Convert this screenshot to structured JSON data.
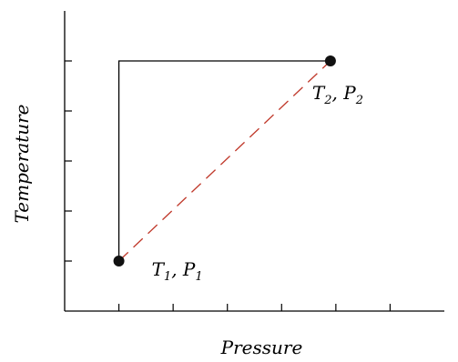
{
  "chart_data": {
    "type": "line",
    "xlabel": "Pressure",
    "ylabel": "Temperature",
    "xlim": [
      0,
      7
    ],
    "ylim": [
      0,
      6
    ],
    "x_ticks": [
      1,
      2,
      3,
      4,
      5,
      6
    ],
    "y_ticks": [
      1,
      2,
      3,
      4,
      5
    ],
    "tick_labels_shown": false,
    "grid": false,
    "points": [
      {
        "name": "point-1",
        "label_main": "T",
        "label_sub": "1",
        "label_main2": "P",
        "label_sub2": "1",
        "x": 1,
        "y": 1
      },
      {
        "name": "point-2",
        "label_main": "T",
        "label_sub": "2",
        "label_main2": "P",
        "label_sub2": "2",
        "x": 4.9,
        "y": 5
      }
    ],
    "series": [
      {
        "style": "solid",
        "color": "#000000",
        "x": [
          1,
          1,
          4.9
        ],
        "y": [
          1,
          5,
          5
        ]
      },
      {
        "style": "dashed",
        "color": "#c0392b",
        "x": [
          1,
          4.9
        ],
        "y": [
          1,
          5
        ]
      }
    ]
  }
}
